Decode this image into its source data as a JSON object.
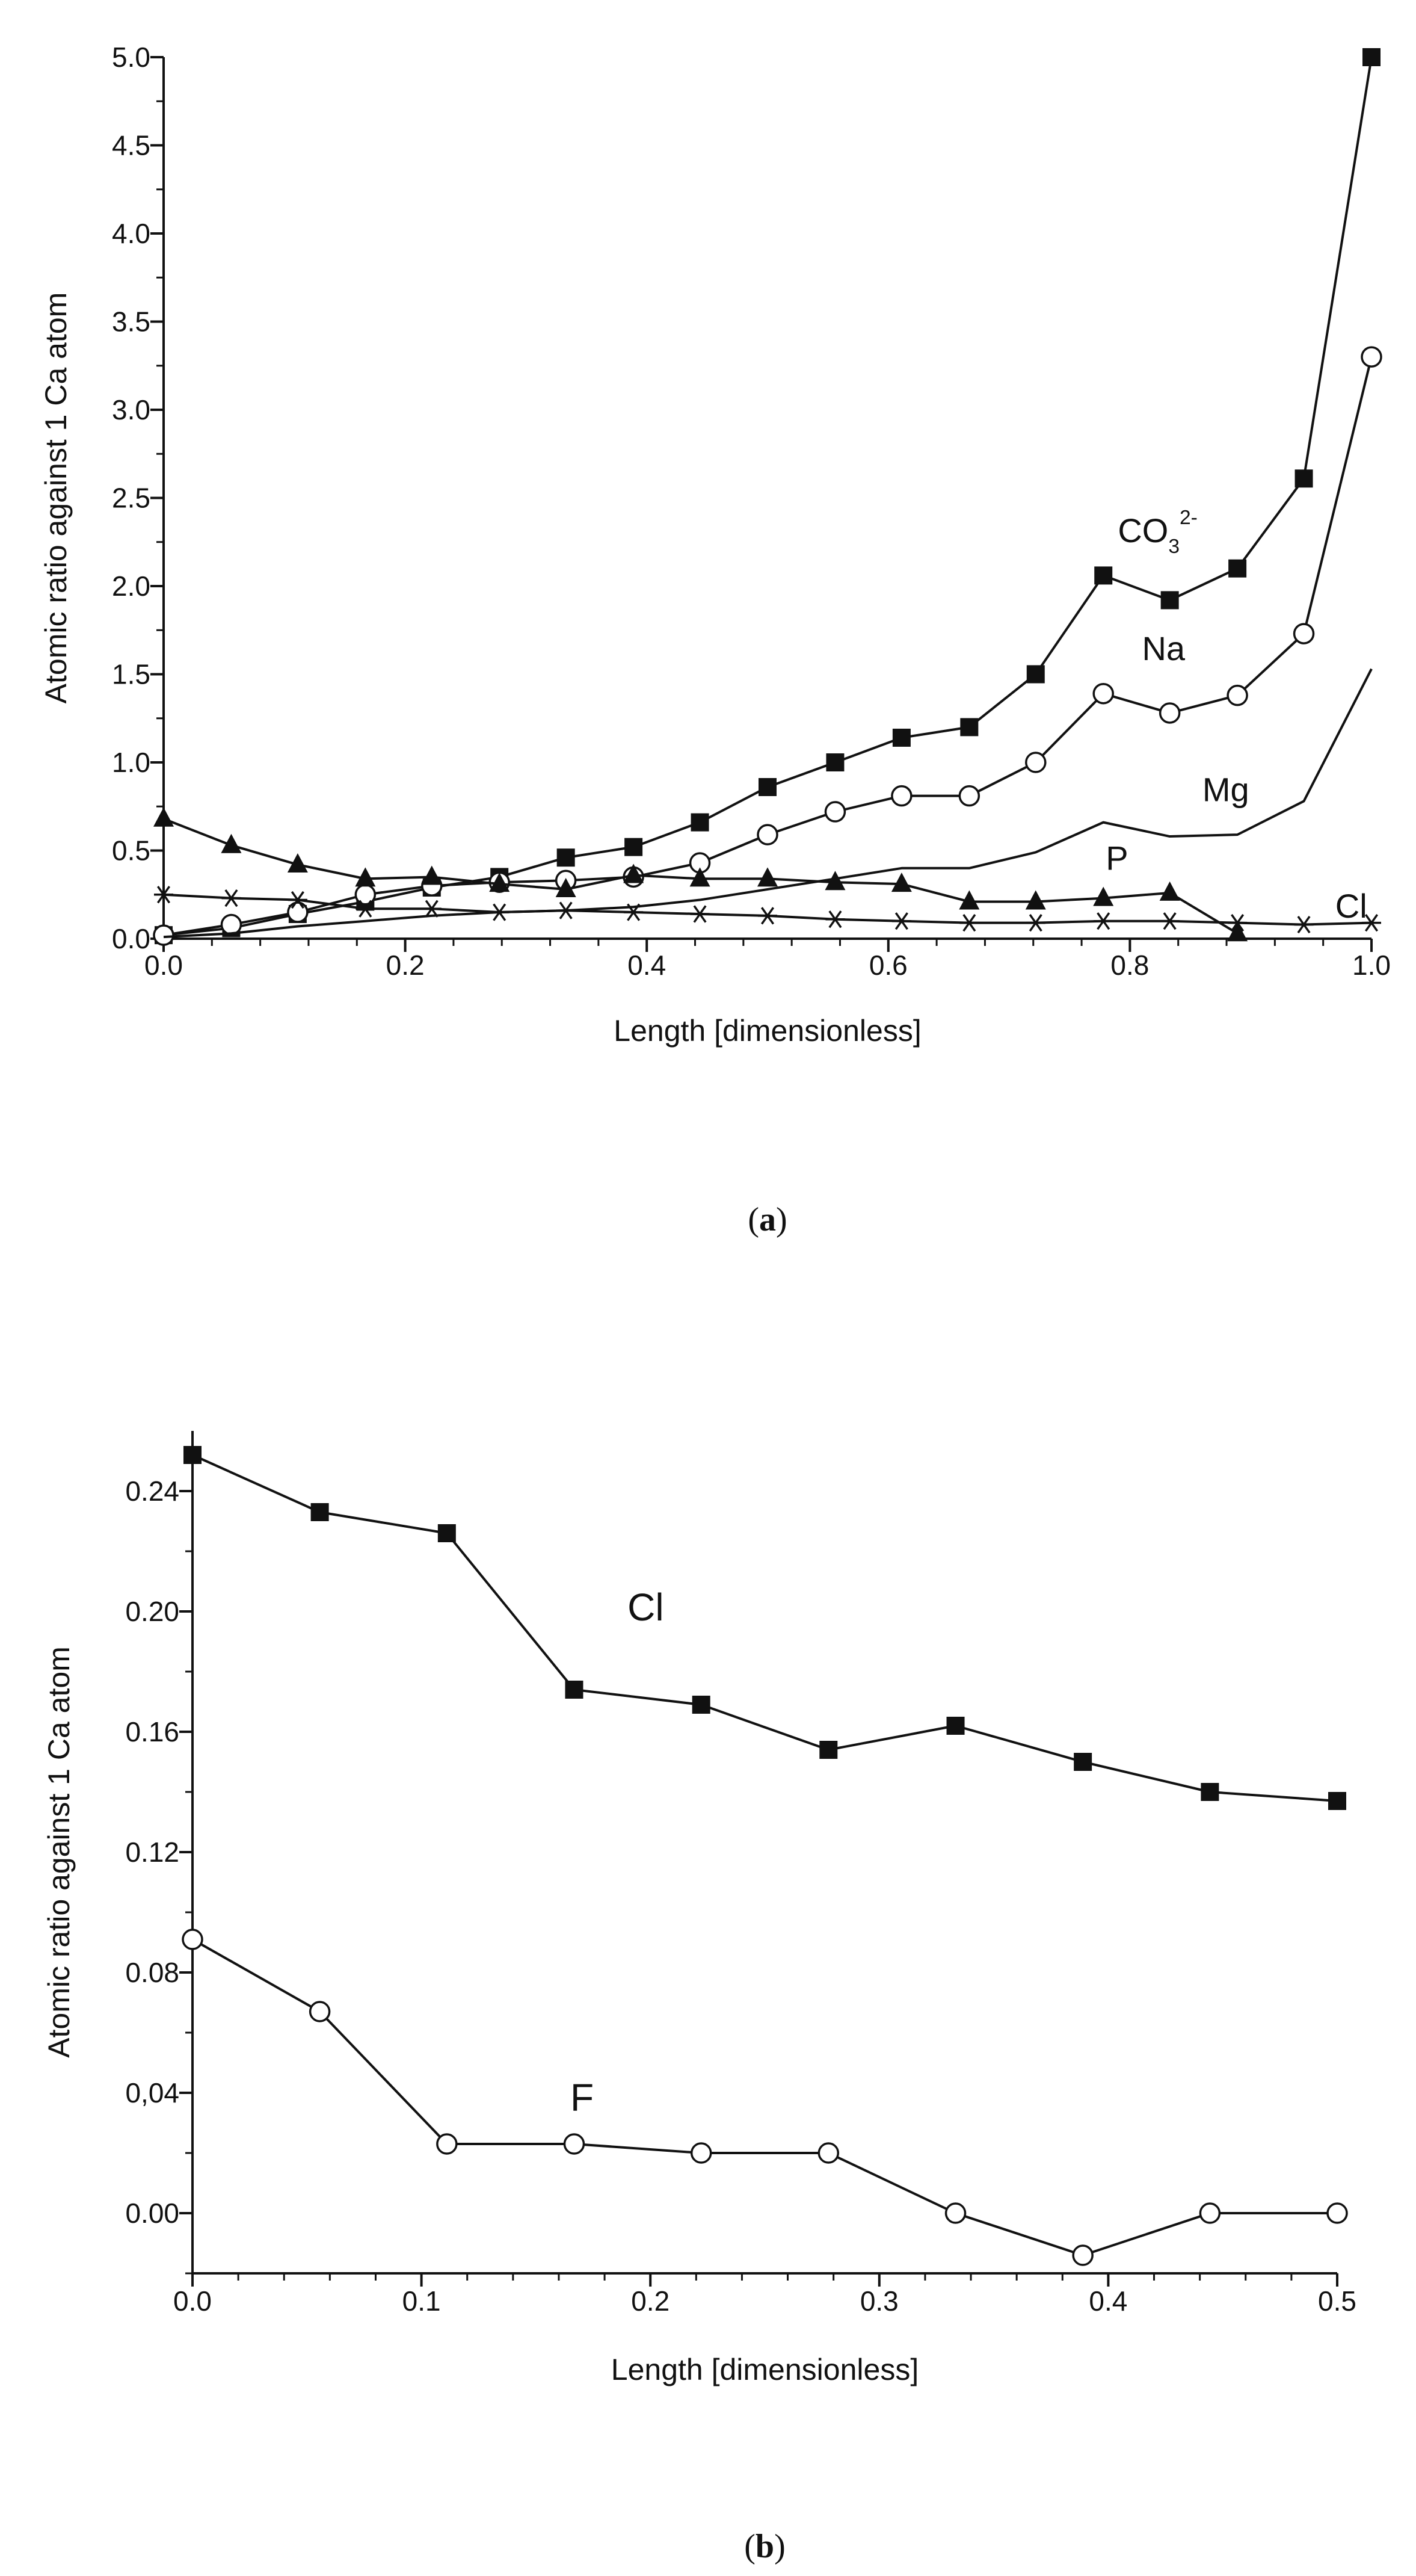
{
  "chart_data": [
    {
      "type": "line",
      "caption": {
        "open": "(",
        "letter": "a",
        "close": ")"
      },
      "xlabel": "Length [dimensionless]",
      "ylabel": "Atomic ratio against 1 Ca atom",
      "xlim": [
        0.0,
        1.0
      ],
      "ylim": [
        0.0,
        5.0
      ],
      "xticks": [
        0.0,
        0.2,
        0.4,
        0.6,
        0.8,
        1.0
      ],
      "xtick_labels": [
        "0.0",
        "0.2",
        "0.4",
        "0.6",
        "0.8",
        "1.0"
      ],
      "yticks": [
        0.0,
        0.5,
        1.0,
        1.5,
        2.0,
        2.5,
        3.0,
        3.5,
        4.0,
        4.5,
        5.0
      ],
      "ytick_labels": [
        "0.0",
        "0.5",
        "1.0",
        "1.5",
        "2.0",
        "2.5",
        "3.0",
        "3.5",
        "4.0",
        "4.5",
        "5.0"
      ],
      "series": [
        {
          "name": "CO3 2-",
          "label": "CO",
          "label_sub": "3",
          "label_sup": "2-",
          "label_at": [
            0.79,
            2.25
          ],
          "marker": "square",
          "x": [
            0.0,
            0.056,
            0.111,
            0.167,
            0.222,
            0.278,
            0.333,
            0.389,
            0.444,
            0.5,
            0.556,
            0.611,
            0.667,
            0.722,
            0.778,
            0.833,
            0.889,
            0.944,
            1.0
          ],
          "y": [
            0.02,
            0.06,
            0.14,
            0.21,
            0.29,
            0.35,
            0.46,
            0.52,
            0.66,
            0.86,
            1.0,
            1.14,
            1.2,
            1.5,
            2.06,
            1.92,
            2.1,
            2.61,
            5.0
          ]
        },
        {
          "name": "Na",
          "label": "Na",
          "label_at": [
            0.81,
            1.58
          ],
          "marker": "circle",
          "x": [
            0.0,
            0.056,
            0.111,
            0.167,
            0.222,
            0.278,
            0.333,
            0.389,
            0.444,
            0.5,
            0.556,
            0.611,
            0.667,
            0.722,
            0.778,
            0.833,
            0.889,
            0.944,
            1.0
          ],
          "y": [
            0.02,
            0.08,
            0.15,
            0.25,
            0.3,
            0.32,
            0.33,
            0.35,
            0.43,
            0.59,
            0.72,
            0.81,
            0.81,
            1.0,
            1.39,
            1.28,
            1.38,
            1.73,
            3.3
          ]
        },
        {
          "name": "Mg",
          "label": "Mg",
          "label_at": [
            0.86,
            0.78
          ],
          "marker": "none",
          "x": [
            0.0,
            0.056,
            0.111,
            0.167,
            0.222,
            0.278,
            0.333,
            0.389,
            0.444,
            0.5,
            0.556,
            0.611,
            0.667,
            0.722,
            0.778,
            0.833,
            0.889,
            0.944,
            1.0
          ],
          "y": [
            0.01,
            0.03,
            0.07,
            0.1,
            0.13,
            0.15,
            0.16,
            0.18,
            0.22,
            0.28,
            0.34,
            0.4,
            0.4,
            0.49,
            0.66,
            0.58,
            0.59,
            0.78,
            1.53
          ]
        },
        {
          "name": "P",
          "label": "P",
          "label_at": [
            0.78,
            0.39
          ],
          "marker": "triangle",
          "x": [
            0.0,
            0.056,
            0.111,
            0.167,
            0.222,
            0.278,
            0.333,
            0.389,
            0.444,
            0.5,
            0.556,
            0.611,
            0.667,
            0.722,
            0.778,
            0.833,
            0.889
          ],
          "y": [
            0.68,
            0.53,
            0.42,
            0.34,
            0.35,
            0.31,
            0.28,
            0.36,
            0.34,
            0.34,
            0.32,
            0.31,
            0.21,
            0.21,
            0.23,
            0.26,
            0.03
          ]
        },
        {
          "name": "Cl",
          "label": "Cl",
          "label_at": [
            0.97,
            0.12
          ],
          "marker": "asterisk",
          "x": [
            0.0,
            0.056,
            0.111,
            0.167,
            0.222,
            0.278,
            0.333,
            0.389,
            0.444,
            0.5,
            0.556,
            0.611,
            0.667,
            0.722,
            0.778,
            0.833,
            0.889,
            0.944,
            1.0
          ],
          "y": [
            0.25,
            0.23,
            0.22,
            0.17,
            0.17,
            0.15,
            0.16,
            0.15,
            0.14,
            0.13,
            0.11,
            0.1,
            0.09,
            0.09,
            0.1,
            0.1,
            0.09,
            0.08,
            0.09
          ]
        }
      ]
    },
    {
      "type": "line",
      "caption": {
        "open": "(",
        "letter": "b",
        "close": ")"
      },
      "xlabel": "Length [dimensionless]",
      "ylabel": "Atomic ratio against 1 Ca atom",
      "xlim": [
        0.0,
        0.5
      ],
      "ylim": [
        -0.02,
        0.26
      ],
      "xticks": [
        0.0,
        0.1,
        0.2,
        0.3,
        0.4,
        0.5
      ],
      "xtick_labels": [
        "0.0",
        "0.1",
        "0.2",
        "0.3",
        "0.4",
        "0.5"
      ],
      "yticks": [
        0.0,
        0.04,
        0.08,
        0.12,
        0.16,
        0.2,
        0.24
      ],
      "ytick_labels": [
        "0.00",
        "0,04",
        "0.08",
        "0.12",
        "0.16",
        "0.20",
        "0.24"
      ],
      "series": [
        {
          "name": "Cl",
          "label": "Cl",
          "label_at": [
            0.19,
            0.197
          ],
          "marker": "square",
          "x": [
            0.0,
            0.0556,
            0.1111,
            0.1667,
            0.2222,
            0.2778,
            0.3333,
            0.3889,
            0.4444,
            0.5
          ],
          "y": [
            0.252,
            0.233,
            0.226,
            0.174,
            0.169,
            0.154,
            0.162,
            0.15,
            0.14,
            0.137
          ]
        },
        {
          "name": "F",
          "label": "F",
          "label_at": [
            0.165,
            0.034
          ],
          "marker": "circle",
          "x": [
            0.0,
            0.0556,
            0.1111,
            0.1667,
            0.2222,
            0.2778,
            0.3333,
            0.3889,
            0.4444,
            0.5
          ],
          "y": [
            0.091,
            0.067,
            0.023,
            0.023,
            0.02,
            0.02,
            0.0,
            -0.014,
            0.0,
            0.0
          ]
        }
      ]
    }
  ]
}
